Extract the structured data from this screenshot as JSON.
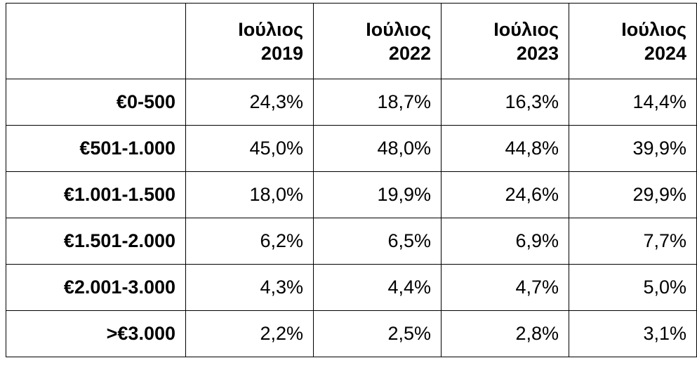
{
  "chart_data": {
    "type": "table",
    "columns": [
      {
        "month": "Ιούλιος",
        "year": "2019"
      },
      {
        "month": "Ιούλιος",
        "year": "2022"
      },
      {
        "month": "Ιούλιος",
        "year": "2023"
      },
      {
        "month": "Ιούλιος",
        "year": "2024"
      }
    ],
    "rows": [
      {
        "label": "€0-500",
        "values": [
          "24,3%",
          "18,7%",
          "16,3%",
          "14,4%"
        ]
      },
      {
        "label": "€501-1.000",
        "values": [
          "45,0%",
          "48,0%",
          "44,8%",
          "39,9%"
        ]
      },
      {
        "label": "€1.001-1.500",
        "values": [
          "18,0%",
          "19,9%",
          "24,6%",
          "29,9%"
        ]
      },
      {
        "label": "€1.501-2.000",
        "values": [
          "6,2%",
          "6,5%",
          "6,9%",
          "7,7%"
        ]
      },
      {
        "label": "€2.001-3.000",
        "values": [
          "4,3%",
          "4,4%",
          "4,7%",
          "5,0%"
        ]
      },
      {
        "label": ">€3.000",
        "values": [
          "2,2%",
          "2,5%",
          "2,8%",
          "3,1%"
        ]
      }
    ]
  }
}
